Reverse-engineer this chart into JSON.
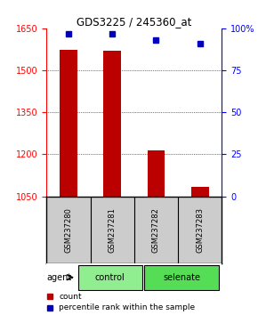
{
  "title": "GDS3225 / 245360_at",
  "samples": [
    "GSM237280",
    "GSM237281",
    "GSM237282",
    "GSM237283"
  ],
  "groups": [
    "control",
    "control",
    "selenate",
    "selenate"
  ],
  "group_colors": {
    "control": "#90EE90",
    "selenate": "#55DD55"
  },
  "bar_values": [
    1572,
    1570,
    1215,
    1082
  ],
  "percentile_values": [
    97,
    97,
    93,
    91
  ],
  "ylim_left": [
    1050,
    1650
  ],
  "ylim_right": [
    0,
    100
  ],
  "yticks_left": [
    1050,
    1200,
    1350,
    1500,
    1650
  ],
  "yticks_right": [
    0,
    25,
    50,
    75,
    100
  ],
  "bar_color": "#BB0000",
  "dot_color": "#0000BB",
  "bar_bottom": 1050,
  "background_color": "#ffffff",
  "label_bg": "#cccccc",
  "bar_width": 0.4
}
